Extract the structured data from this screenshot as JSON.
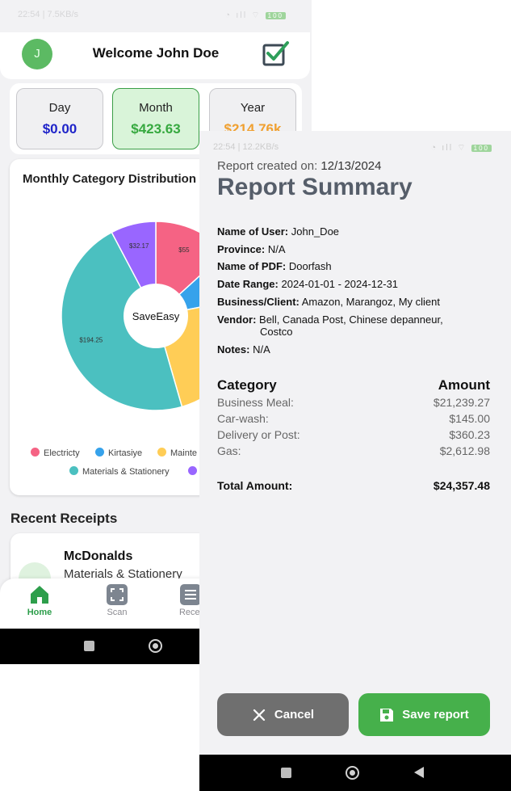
{
  "back_screen": {
    "status_bar": {
      "time": "22:54 | 7.5KB/s",
      "battery": "100"
    },
    "header": {
      "avatar_letter": "J",
      "welcome": "Welcome John Doe",
      "icon": "check-box-icon"
    },
    "stats": [
      {
        "label": "Day",
        "value": "$0.00"
      },
      {
        "label": "Month",
        "value": "$423.63"
      },
      {
        "label": "Year",
        "value": "$214.76k"
      }
    ],
    "chart_card": {
      "title": "Monthly Category Distribution"
    },
    "chart_data": {
      "type": "pie",
      "title": "Monthly Category Distribution",
      "center_label": "SaveEasy",
      "slices": [
        {
          "name": "Electricty",
          "value": 55,
          "label": "$55",
          "color": "#f56384"
        },
        {
          "name": "Kirtasiye",
          "value": 36,
          "label": "",
          "color": "#36a2eb"
        },
        {
          "name": "Mainte",
          "value": 98.25,
          "label": "",
          "color": "#ffcd56"
        },
        {
          "name": "Materials & Stationery",
          "value": 194.25,
          "label": "$194.25",
          "color": "#4bc0c0"
        },
        {
          "name": "",
          "value": 32.17,
          "label": "$32.17",
          "color": "#9966ff"
        }
      ],
      "legend_position": "bottom"
    },
    "recent_title": "Recent Receipts",
    "receipt": {
      "name": "McDonalds",
      "category": "Materials & Stationery"
    },
    "nav": [
      {
        "label": "Home",
        "icon": "home-icon"
      },
      {
        "label": "Scan",
        "icon": "scan-icon"
      },
      {
        "label": "Recei",
        "icon": "receipts-icon"
      }
    ]
  },
  "report": {
    "status_bar": {
      "time": "22:54 | 12.2KB/s",
      "battery": "100"
    },
    "created_label": "Report created on:",
    "created_date": "12/13/2024",
    "title": "Report Summary",
    "info": [
      {
        "label": "Name of User:",
        "value": "John_Doe"
      },
      {
        "label": "Province:",
        "value": "N/A"
      },
      {
        "label": "Name of PDF:",
        "value": "Doorfash"
      },
      {
        "label": "Date Range:",
        "value": "2024-01-01 - 2024-12-31"
      },
      {
        "label": "Business/Client:",
        "value": "Amazon, Marangoz, My client"
      },
      {
        "label": "Vendor:",
        "value": "Bell, Canada Post, Chinese depanneur,",
        "value2": "Costco"
      },
      {
        "label": "Notes:",
        "value": "N/A"
      }
    ],
    "category_header": "Category",
    "amount_header": "Amount",
    "rows": [
      {
        "category": "Business Meal:",
        "amount": "$21,239.27"
      },
      {
        "category": "Car-wash:",
        "amount": "$145.00"
      },
      {
        "category": "Delivery or Post:",
        "amount": "$360.23"
      },
      {
        "category": "Gas:",
        "amount": "$2,612.98"
      }
    ],
    "total_label": "Total Amount:",
    "total_value": "$24,357.48",
    "cancel_label": "Cancel",
    "save_label": "Save report"
  }
}
